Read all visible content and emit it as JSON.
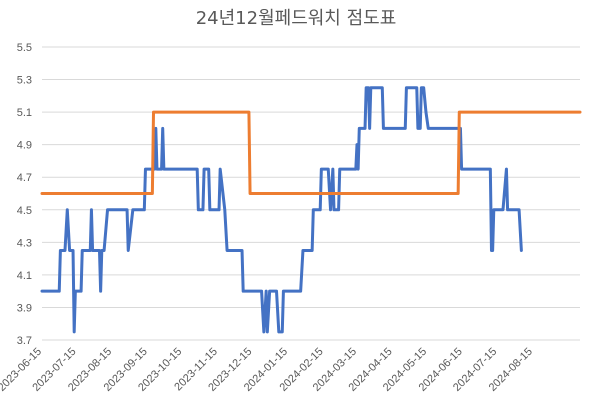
{
  "chart_data": {
    "type": "line",
    "title": "24년12월페드워치 점도표",
    "xlabel": "",
    "ylabel": "",
    "ylim": [
      3.7,
      5.5
    ],
    "yticks": [
      "3.7",
      "3.9",
      "4.1",
      "4.3",
      "4.5",
      "4.7",
      "4.9",
      "5.1",
      "5.3",
      "5.5"
    ],
    "xlim": [
      "2023-06-15",
      "2024-09-25"
    ],
    "xticks": [
      "2023-06-15",
      "2023-07-15",
      "2023-08-15",
      "2023-09-15",
      "2023-10-15",
      "2023-11-15",
      "2023-12-15",
      "2024-01-15",
      "2024-02-15",
      "2024-03-15",
      "2024-04-15",
      "2024-05-15",
      "2024-06-15",
      "2024-07-15",
      "2024-08-15"
    ],
    "grid": true,
    "legend": "none",
    "colors": {
      "fedwatch": "#4472c4",
      "dot_plot": "#ed7d31"
    },
    "series": [
      {
        "color_key": "fedwatch",
        "points": [
          [
            "2023-06-15",
            4.0
          ],
          [
            "2023-06-30",
            4.0
          ],
          [
            "2023-07-01",
            4.25
          ],
          [
            "2023-07-05",
            4.25
          ],
          [
            "2023-07-07",
            4.5
          ],
          [
            "2023-07-09",
            4.25
          ],
          [
            "2023-07-12",
            4.25
          ],
          [
            "2023-07-13",
            3.75
          ],
          [
            "2023-07-14",
            4.0
          ],
          [
            "2023-07-19",
            4.0
          ],
          [
            "2023-07-20",
            4.25
          ],
          [
            "2023-07-27",
            4.25
          ],
          [
            "2023-07-28",
            4.5
          ],
          [
            "2023-07-29",
            4.25
          ],
          [
            "2023-08-04",
            4.25
          ],
          [
            "2023-08-05",
            4.0
          ],
          [
            "2023-08-06",
            4.25
          ],
          [
            "2023-08-08",
            4.25
          ],
          [
            "2023-08-11",
            4.5
          ],
          [
            "2023-08-28",
            4.5
          ],
          [
            "2023-08-29",
            4.25
          ],
          [
            "2023-09-02",
            4.5
          ],
          [
            "2023-09-12",
            4.5
          ],
          [
            "2023-09-13",
            4.75
          ],
          [
            "2023-09-21",
            4.75
          ],
          [
            "2023-09-22",
            5.0
          ],
          [
            "2023-09-23",
            4.75
          ],
          [
            "2023-09-27",
            4.75
          ],
          [
            "2023-09-28",
            5.0
          ],
          [
            "2023-09-29",
            4.75
          ],
          [
            "2023-10-28",
            4.75
          ],
          [
            "2023-10-29",
            4.5
          ],
          [
            "2023-11-02",
            4.5
          ],
          [
            "2023-11-03",
            4.75
          ],
          [
            "2023-11-07",
            4.75
          ],
          [
            "2023-11-08",
            4.5
          ],
          [
            "2023-11-16",
            4.5
          ],
          [
            "2023-11-17",
            4.75
          ],
          [
            "2023-11-21",
            4.5
          ],
          [
            "2023-11-23",
            4.25
          ],
          [
            "2023-12-06",
            4.25
          ],
          [
            "2023-12-07",
            4.0
          ],
          [
            "2023-12-23",
            4.0
          ],
          [
            "2023-12-25",
            3.75
          ],
          [
            "2023-12-27",
            4.0
          ],
          [
            "2023-12-28",
            3.75
          ],
          [
            "2023-12-30",
            4.0
          ],
          [
            "2024-01-05",
            4.0
          ],
          [
            "2024-01-07",
            3.75
          ],
          [
            "2024-01-10",
            3.75
          ],
          [
            "2024-01-11",
            4.0
          ],
          [
            "2024-01-26",
            4.0
          ],
          [
            "2024-01-28",
            4.25
          ],
          [
            "2024-02-05",
            4.25
          ],
          [
            "2024-02-06",
            4.5
          ],
          [
            "2024-02-12",
            4.5
          ],
          [
            "2024-02-13",
            4.75
          ],
          [
            "2024-02-19",
            4.75
          ],
          [
            "2024-02-21",
            4.5
          ],
          [
            "2024-02-23",
            4.75
          ],
          [
            "2024-02-24",
            4.5
          ],
          [
            "2024-02-28",
            4.5
          ],
          [
            "2024-02-29",
            4.75
          ],
          [
            "2024-03-14",
            4.75
          ],
          [
            "2024-03-15",
            4.9
          ],
          [
            "2024-03-16",
            4.75
          ],
          [
            "2024-03-17",
            5.0
          ],
          [
            "2024-03-22",
            5.0
          ],
          [
            "2024-03-23",
            5.25
          ],
          [
            "2024-03-25",
            5.25
          ],
          [
            "2024-03-26",
            5.0
          ],
          [
            "2024-03-27",
            5.25
          ],
          [
            "2024-04-06",
            5.25
          ],
          [
            "2024-04-07",
            5.0
          ],
          [
            "2024-04-26",
            5.0
          ],
          [
            "2024-04-27",
            5.25
          ],
          [
            "2024-05-06",
            5.25
          ],
          [
            "2024-05-07",
            5.0
          ],
          [
            "2024-05-09",
            5.0
          ],
          [
            "2024-05-10",
            5.25
          ],
          [
            "2024-05-12",
            5.25
          ],
          [
            "2024-05-14",
            5.1
          ],
          [
            "2024-05-16",
            5.0
          ],
          [
            "2024-06-13",
            5.0
          ],
          [
            "2024-06-14",
            4.75
          ],
          [
            "2024-06-30",
            4.75
          ],
          [
            "2024-07-02",
            4.75
          ],
          [
            "2024-07-09",
            4.75
          ],
          [
            "2024-07-10",
            4.25
          ],
          [
            "2024-07-11",
            4.25
          ],
          [
            "2024-07-12",
            4.5
          ],
          [
            "2024-07-20",
            4.5
          ],
          [
            "2024-07-23",
            4.75
          ],
          [
            "2024-07-24",
            4.5
          ],
          [
            "2024-08-03",
            4.5
          ],
          [
            "2024-08-05",
            4.25
          ]
        ]
      },
      {
        "color_key": "dot_plot",
        "points": [
          [
            "2023-06-15",
            4.6
          ],
          [
            "2023-09-19",
            4.6
          ],
          [
            "2023-09-20",
            5.1
          ],
          [
            "2023-12-12",
            5.1
          ],
          [
            "2023-12-13",
            4.6
          ],
          [
            "2024-06-11",
            4.6
          ],
          [
            "2024-06-12",
            5.1
          ],
          [
            "2024-09-25",
            5.1
          ]
        ]
      }
    ]
  }
}
